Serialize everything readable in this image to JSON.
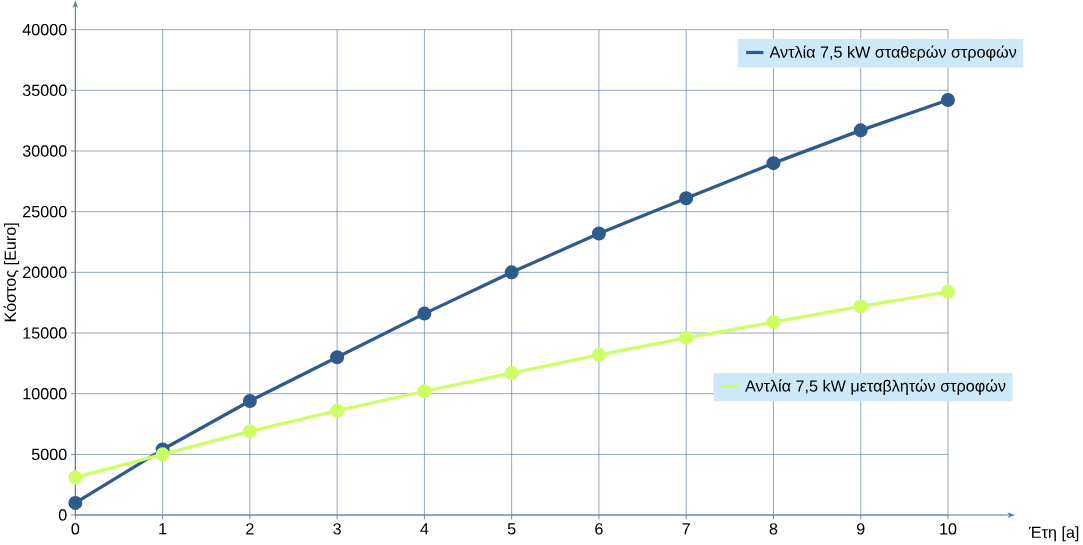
{
  "chart_data": {
    "type": "line",
    "xlabel": "Έτη [a]",
    "ylabel": "Κόστος [Euro]",
    "x": [
      0,
      1,
      2,
      3,
      4,
      5,
      6,
      7,
      8,
      9,
      10
    ],
    "series": [
      {
        "name": "Αντλία 7,5 kW σταθερών στροφών",
        "color": "#2f5b8c",
        "values": [
          1000,
          5400,
          9400,
          13000,
          16600,
          20000,
          23200,
          26100,
          29000,
          31700,
          34200
        ]
      },
      {
        "name": "Αντλία 7,5 kW μεταβλητών στροφών",
        "color": "#ccff66",
        "values": [
          3100,
          5000,
          6900,
          8600,
          10200,
          11700,
          13200,
          14600,
          15900,
          17200,
          18400
        ]
      }
    ],
    "xlim": [
      0,
      10
    ],
    "ylim": [
      0,
      40000
    ],
    "xticks": [
      0,
      1,
      2,
      3,
      4,
      5,
      6,
      7,
      8,
      9,
      10
    ],
    "yticks": [
      0,
      5000,
      10000,
      15000,
      20000,
      25000,
      30000,
      35000,
      40000
    ],
    "grid": true,
    "legend": "right",
    "marker": "circle",
    "line_style": "solid"
  }
}
